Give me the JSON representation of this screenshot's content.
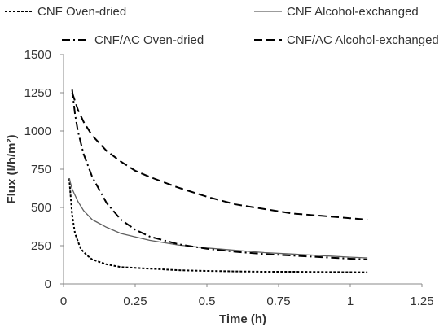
{
  "chart_data": {
    "type": "line",
    "title": "",
    "xlabel": "Time (h)",
    "ylabel": "Flux (l/h/m²)",
    "xlim": [
      0,
      1.25
    ],
    "ylim": [
      0,
      1500
    ],
    "xticks": [
      0,
      0.25,
      0.5,
      0.75,
      1,
      1.25
    ],
    "xtick_labels": [
      "0",
      "0.25",
      "0.5",
      "0.75",
      "1",
      "1.25"
    ],
    "yticks": [
      0,
      250,
      500,
      750,
      1000,
      1250,
      1500
    ],
    "ytick_labels": [
      "0",
      "250",
      "500",
      "750",
      "1000",
      "1250",
      "1500"
    ],
    "grid": false,
    "legend_position": "top",
    "series": [
      {
        "name": "CNF Oven-dried",
        "style": "dotted",
        "color": "#000000",
        "x": [
          0.02,
          0.03,
          0.04,
          0.06,
          0.08,
          0.1,
          0.15,
          0.2,
          0.3,
          0.4,
          0.5,
          0.6,
          0.7,
          0.8,
          0.9,
          1.0,
          1.06
        ],
        "y": [
          690,
          450,
          330,
          230,
          190,
          160,
          128,
          110,
          100,
          90,
          85,
          82,
          80,
          80,
          78,
          77,
          76
        ]
      },
      {
        "name": "CNF Alcohol-exchanged",
        "style": "solid",
        "color": "#606060",
        "x": [
          0.02,
          0.03,
          0.05,
          0.07,
          0.1,
          0.15,
          0.2,
          0.3,
          0.4,
          0.5,
          0.6,
          0.7,
          0.8,
          0.9,
          1.0,
          1.06
        ],
        "y": [
          690,
          620,
          540,
          480,
          420,
          370,
          330,
          285,
          255,
          235,
          220,
          205,
          195,
          185,
          175,
          170
        ]
      },
      {
        "name": "CNF/AC Oven-dried",
        "style": "dashdot",
        "color": "#000000",
        "x": [
          0.03,
          0.04,
          0.05,
          0.07,
          0.1,
          0.15,
          0.2,
          0.25,
          0.3,
          0.4,
          0.5,
          0.6,
          0.7,
          0.8,
          0.9,
          1.0,
          1.06
        ],
        "y": [
          1270,
          1110,
          1000,
          850,
          700,
          530,
          420,
          355,
          310,
          260,
          230,
          210,
          195,
          185,
          175,
          165,
          160
        ]
      },
      {
        "name": "CNF/AC Alcohol-exchanged",
        "style": "dashed",
        "color": "#000000",
        "x": [
          0.03,
          0.05,
          0.07,
          0.1,
          0.15,
          0.2,
          0.25,
          0.3,
          0.4,
          0.5,
          0.6,
          0.7,
          0.8,
          0.9,
          1.0,
          1.06
        ],
        "y": [
          1250,
          1140,
          1060,
          970,
          870,
          800,
          740,
          700,
          630,
          570,
          520,
          490,
          460,
          445,
          430,
          420
        ]
      }
    ]
  }
}
